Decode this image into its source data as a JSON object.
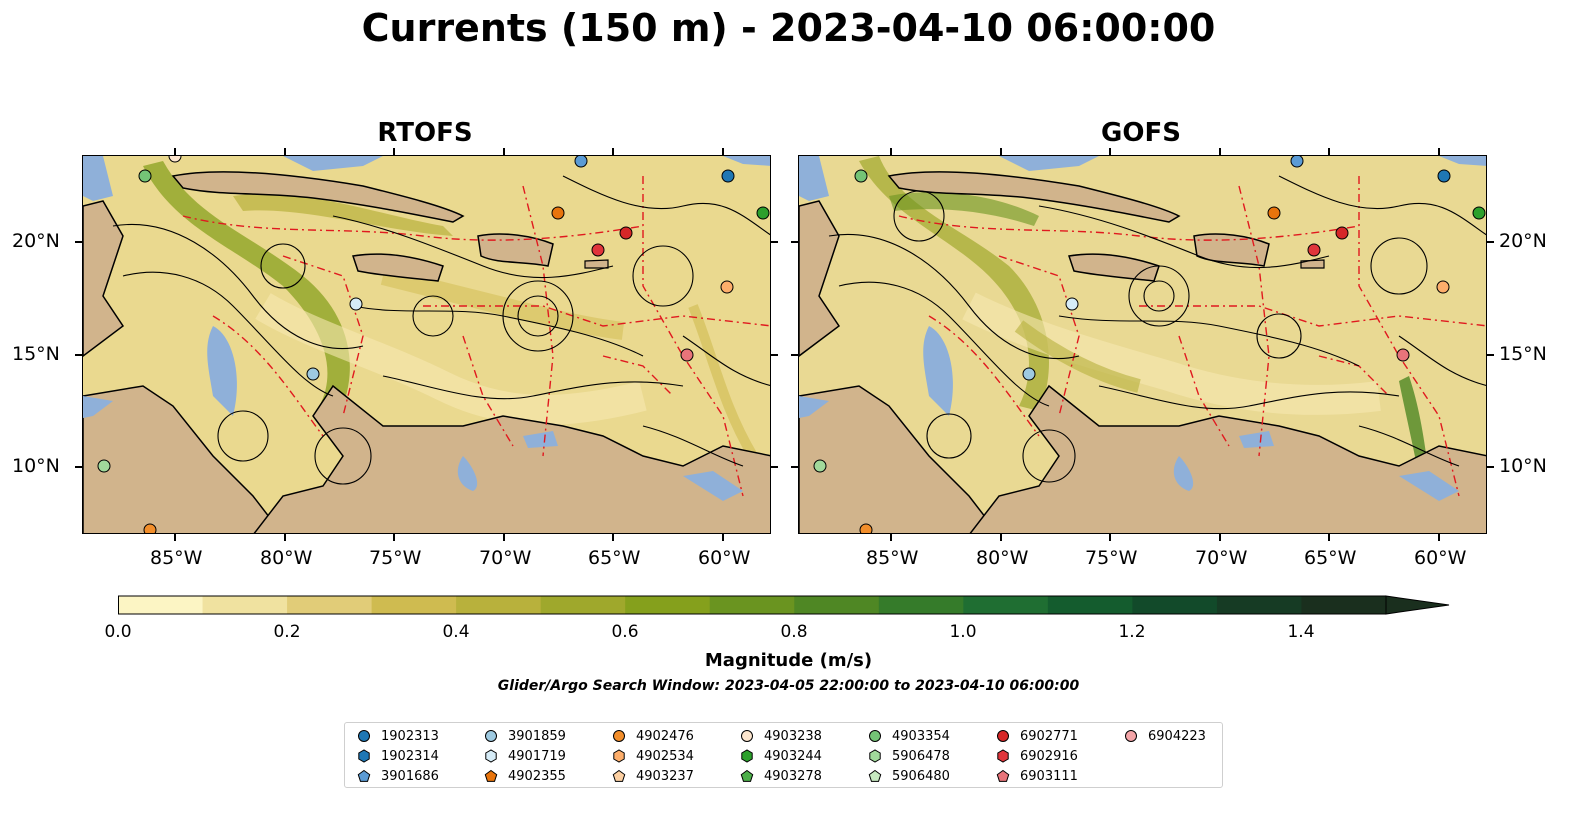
{
  "title": "Currents (150 m) - 2023-04-10 06:00:00",
  "panels": [
    {
      "title": "RTOFS"
    },
    {
      "title": "GOFS"
    }
  ],
  "axes": {
    "lon_labels": [
      "85°W",
      "80°W",
      "75°W",
      "70°W",
      "65°W",
      "60°W"
    ],
    "lat_labels": [
      "20°N",
      "15°N",
      "10°N"
    ]
  },
  "colorbar": {
    "tick_labels": [
      "0.0",
      "0.2",
      "0.4",
      "0.6",
      "0.8",
      "1.0",
      "1.2",
      "1.4"
    ],
    "label": "Magnitude (m/s)",
    "colors": [
      "#fcf5c4",
      "#f0e2a0",
      "#e1cc78",
      "#cfbb50",
      "#b8b13c",
      "#9fa82c",
      "#85a01c",
      "#6a9420",
      "#4f8724",
      "#357b2a",
      "#1f6e32",
      "#145c2e",
      "#124a2a",
      "#163b24",
      "#1a2f1e"
    ]
  },
  "search_window": "Glider/Argo Search Window: 2023-04-05 22:00:00 to 2023-04-10 06:00:00",
  "legend": {
    "items": [
      {
        "label": "1902313",
        "marker": "circle",
        "color": "#1f77b4"
      },
      {
        "label": "1902314",
        "marker": "hexagon",
        "color": "#1f77b4"
      },
      {
        "label": "3901686",
        "marker": "pentagon",
        "color": "#5b9bd5"
      },
      {
        "label": "3901859",
        "marker": "circle",
        "color": "#9ecae1"
      },
      {
        "label": "4901719",
        "marker": "hexagon",
        "color": "#d6ecf7"
      },
      {
        "label": "4902355",
        "marker": "pentagon",
        "color": "#e8740c"
      },
      {
        "label": "4902476",
        "marker": "circle",
        "color": "#f28e2b"
      },
      {
        "label": "4902534",
        "marker": "hexagon",
        "color": "#fdae6b"
      },
      {
        "label": "4903237",
        "marker": "pentagon",
        "color": "#fdd0a2"
      },
      {
        "label": "4903238",
        "marker": "circle",
        "color": "#fde6ce"
      },
      {
        "label": "4903244",
        "marker": "hexagon",
        "color": "#2ca02c"
      },
      {
        "label": "4903278",
        "marker": "pentagon",
        "color": "#4daf4a"
      },
      {
        "label": "4903354",
        "marker": "circle",
        "color": "#74c476"
      },
      {
        "label": "5906478",
        "marker": "hexagon",
        "color": "#a1d99b"
      },
      {
        "label": "5906480",
        "marker": "pentagon",
        "color": "#c7e9c0"
      },
      {
        "label": "6902771",
        "marker": "circle",
        "color": "#d62728"
      },
      {
        "label": "6902916",
        "marker": "hexagon",
        "color": "#e0353b"
      },
      {
        "label": "6903111",
        "marker": "pentagon",
        "color": "#e8747a"
      },
      {
        "label": "6904223",
        "marker": "circle",
        "color": "#f4a5a8"
      }
    ]
  }
}
